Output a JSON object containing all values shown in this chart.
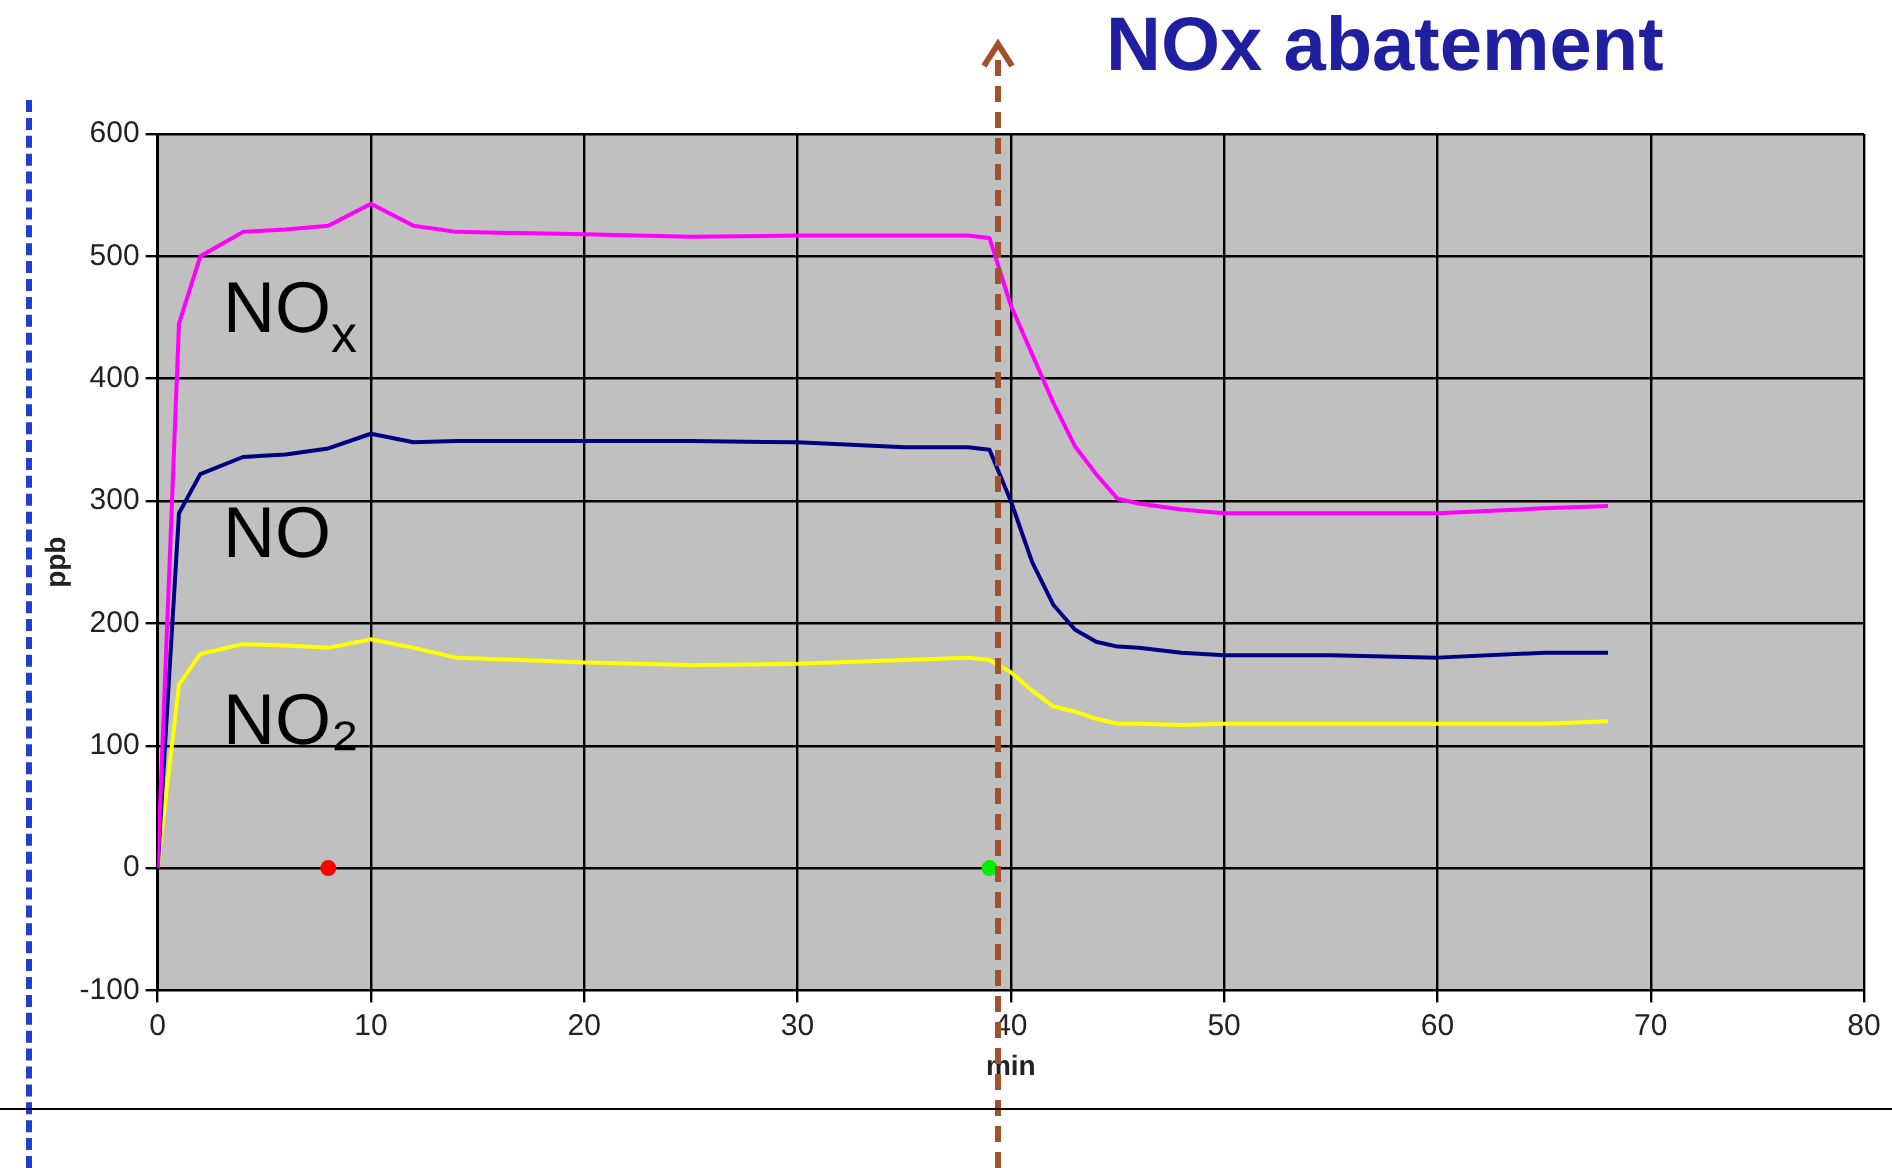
{
  "chart_data": {
    "type": "line",
    "title": "NOx abatement",
    "xlabel": "min",
    "ylabel": "ppb",
    "x": [
      0,
      1,
      2,
      4,
      6,
      8,
      10,
      12,
      14,
      20,
      25,
      30,
      35,
      38,
      39,
      40,
      41,
      42,
      43,
      44,
      45,
      46,
      48,
      50,
      55,
      60,
      65,
      68
    ],
    "series": [
      {
        "name": "NO$_{x}$",
        "color": "#ff00ff",
        "values": [
          0,
          445,
          500,
          520,
          522,
          525,
          543,
          525,
          520,
          518,
          516,
          517,
          517,
          517,
          515,
          460,
          420,
          380,
          345,
          322,
          302,
          298,
          293,
          290,
          290,
          290,
          294,
          296
        ]
      },
      {
        "name": "NO",
        "color": "#000080",
        "values": [
          0,
          290,
          322,
          336,
          338,
          343,
          355,
          348,
          349,
          349,
          349,
          348,
          344,
          344,
          342,
          300,
          250,
          215,
          195,
          185,
          181,
          180,
          176,
          174,
          174,
          172,
          176,
          176
        ]
      },
      {
        "name": "NO₂",
        "color": "#ffff00",
        "values": [
          0,
          150,
          175,
          183,
          182,
          180,
          187,
          180,
          172,
          168,
          166,
          167,
          170,
          172,
          170,
          160,
          145,
          132,
          128,
          122,
          118,
          118,
          117,
          118,
          118,
          118,
          118,
          120
        ]
      },
      {
        "type": "scatter",
        "x": [
          8
        ],
        "values": [
          0
        ],
        "color": "#ff0000",
        "marker": "circle"
      },
      {
        "type": "scatter",
        "x": [
          39
        ],
        "values": [
          0
        ],
        "color": "#00ee00",
        "marker": "circle"
      }
    ],
    "xlim": [
      0,
      80
    ],
    "xticks": [
      0,
      10,
      20,
      30,
      40,
      50,
      60,
      70,
      80
    ],
    "ylim": [
      -100,
      600
    ],
    "yticks": [
      -100,
      0,
      100,
      200,
      300,
      400,
      500,
      600
    ],
    "ref_lines": [
      {
        "axis": "x",
        "value": 39.4,
        "color": "#a0522d",
        "line_style": "dashed"
      }
    ],
    "grid": true,
    "legend": false,
    "marker": "none",
    "line_style": "solid"
  }
}
